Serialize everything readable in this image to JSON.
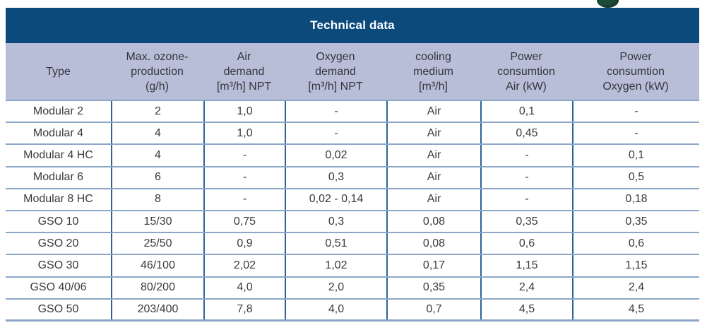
{
  "logo_fragment": {
    "color": "#1d4a37"
  },
  "table": {
    "title": "Technical data",
    "colors": {
      "title_bg": "#0d4a7c",
      "title_text": "#ffffff",
      "header_bg": "#b8bed7",
      "header_text": "#35353d",
      "body_text": "#3a3a3a",
      "row_line": "#8ba6c7",
      "column_line": "#2e6397"
    },
    "columns": [
      {
        "id": "type",
        "lines": [
          "Type"
        ]
      },
      {
        "id": "max-ozone-production",
        "lines": [
          "Max. ozone-",
          "production",
          "(g/h)"
        ]
      },
      {
        "id": "air-demand",
        "lines": [
          "Air",
          "demand",
          "[m³/h] NPT"
        ]
      },
      {
        "id": "oxygen-demand",
        "lines": [
          "Oxygen",
          "demand",
          "[m³/h] NPT"
        ]
      },
      {
        "id": "cooling-medium",
        "lines": [
          "cooling",
          "medium",
          "[m³/h]"
        ]
      },
      {
        "id": "power-consumtion-air",
        "lines": [
          "Power",
          "consumtion",
          "Air (kW)"
        ]
      },
      {
        "id": "power-consumtion-oxygen",
        "lines": [
          "Power",
          "consumtion",
          "Oxygen (kW)"
        ]
      }
    ],
    "rows": [
      {
        "cells": [
          "Modular 2",
          "2",
          "1,0",
          "-",
          "Air",
          "0,1",
          "-"
        ]
      },
      {
        "cells": [
          "Modular 4",
          "4",
          "1,0",
          "-",
          "Air",
          "0,45",
          "-"
        ]
      },
      {
        "cells": [
          "Modular 4 HC",
          "4",
          "-",
          "0,02",
          "Air",
          "-",
          "0,1"
        ]
      },
      {
        "cells": [
          "Modular 6",
          "6",
          "-",
          "0,3",
          "Air",
          "-",
          "0,5"
        ]
      },
      {
        "cells": [
          "Modular 8 HC",
          "8",
          "-",
          "0,02 - 0,14",
          "Air",
          "-",
          "0,18"
        ]
      },
      {
        "cells": [
          "GSO 10",
          "15/30",
          "0,75",
          "0,3",
          "0,08",
          "0,35",
          "0,35"
        ]
      },
      {
        "cells": [
          "GSO 20",
          "25/50",
          "0,9",
          "0,51",
          "0,08",
          "0,6",
          "0,6"
        ]
      },
      {
        "cells": [
          "GSO 30",
          "46/100",
          "2,02",
          "1,02",
          "0,17",
          "1,15",
          "1,15"
        ]
      },
      {
        "cells": [
          "GSO 40/06",
          "80/200",
          "4,0",
          "2,0",
          "0,35",
          "2,4",
          "2,4"
        ]
      },
      {
        "cells": [
          "GSO 50",
          "203/400",
          "7,8",
          "4,0",
          "0,7",
          "4,5",
          "4,5"
        ]
      }
    ]
  }
}
